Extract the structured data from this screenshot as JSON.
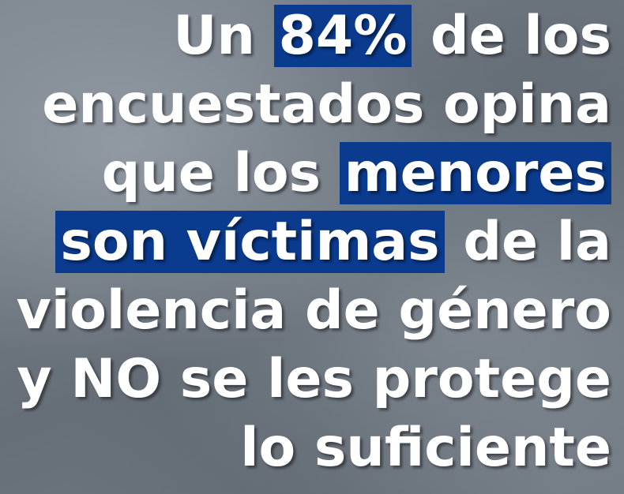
{
  "lines": [
    [
      {
        "text": "Un "
      },
      {
        "text": "84%",
        "highlight": true
      },
      {
        "text": " de los"
      }
    ],
    [
      {
        "text": "encuestados opina"
      }
    ],
    [
      {
        "text": "que los "
      },
      {
        "text": "menores",
        "highlight": true
      }
    ],
    [
      {
        "text": "son víctimas",
        "highlight": true
      },
      {
        "text": " de la"
      }
    ],
    [
      {
        "text": "violencia de género"
      }
    ],
    [
      {
        "text": "y NO se les protege"
      }
    ],
    [
      {
        "text": "lo suficiente"
      }
    ]
  ]
}
